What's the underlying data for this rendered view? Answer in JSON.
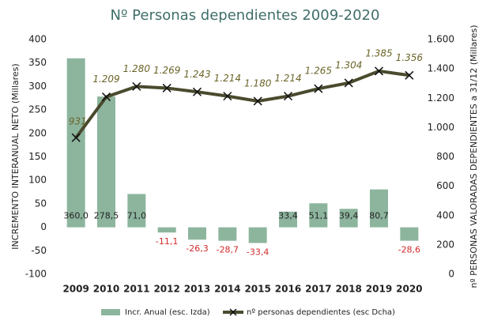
{
  "chart_data": {
    "type": "bar_line",
    "title": "Nº Personas dependientes 2009-2020",
    "ylabel": "INCREMENTO INTERANUAL NETO (Millares)",
    "y2label": "nº PERSONAS VALORADAS DEPENDIENTES a 31/12 (Millares)",
    "categories": [
      "2009",
      "2010",
      "2011",
      "2012",
      "2013",
      "2014",
      "2015",
      "2016",
      "2017",
      "2018",
      "2019",
      "2020"
    ],
    "series": [
      {
        "name": "Incr. Anual (esc. Izda)",
        "color": "#8db59e",
        "type": "bar",
        "values": [
          360.0,
          278.5,
          71.0,
          -11.1,
          -26.3,
          -28.7,
          -33.4,
          33.4,
          51.1,
          39.4,
          80.7,
          -28.6
        ],
        "value_labels": [
          "360,0",
          "278,5",
          "71,0",
          "-11,1",
          "-26,3",
          "-28,7",
          "-33,4",
          "33,4",
          "51,1",
          "39,4",
          "80,7",
          "-28,6"
        ]
      },
      {
        "name": "nº personas dependientes (esc Dcha)",
        "color": "#4a4a2e",
        "type": "line",
        "axis": "y2",
        "values": [
          931,
          1209,
          1280,
          1269,
          1243,
          1214,
          1180,
          1214,
          1265,
          1304,
          1385,
          1356
        ],
        "value_labels": [
          "931",
          "1.209",
          "1.280",
          "1.269",
          "1.243",
          "1.214",
          "1.180",
          "1.214",
          "1.265",
          "1.304",
          "1.385",
          "1.356"
        ]
      }
    ],
    "ylim": [
      -100,
      400
    ],
    "yticks": [
      -100,
      -50,
      0,
      50,
      100,
      150,
      200,
      250,
      300,
      350,
      400
    ],
    "y2lim": [
      0,
      1600
    ],
    "y2ticks": [
      0,
      200,
      400,
      600,
      800,
      {
        "value": 1000,
        "label": "1.000"
      },
      {
        "value": 1200,
        "label": "1.200"
      },
      {
        "value": 1400,
        "label": "1.400"
      },
      {
        "value": 1600,
        "label": "1.600"
      }
    ],
    "grid": false
  }
}
